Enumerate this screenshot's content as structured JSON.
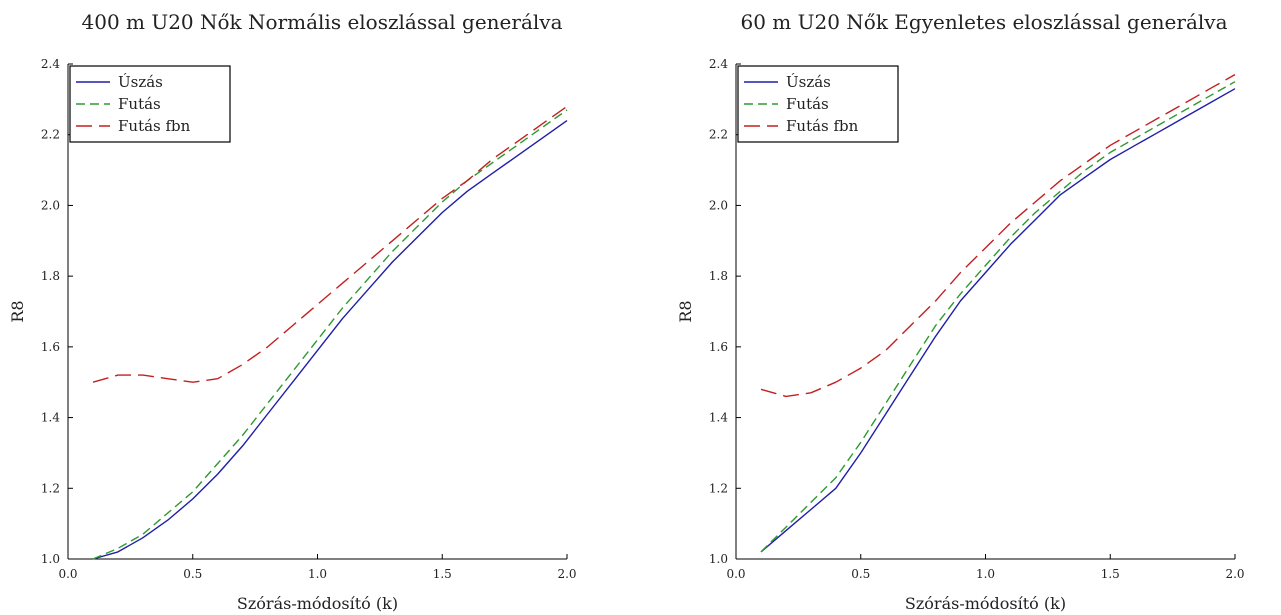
{
  "chart_data": [
    {
      "type": "line",
      "title": "400 m U20 Nők Normális eloszlással generálva",
      "xlabel": "Szórás-módosító (k)",
      "ylabel": "R8",
      "xlim": [
        0.0,
        2.0
      ],
      "ylim": [
        1.0,
        2.4
      ],
      "xticks": [
        "0.0",
        "0.5",
        "1.0",
        "1.5",
        "2.0"
      ],
      "yticks": [
        "1.0",
        "1.2",
        "1.4",
        "1.6",
        "1.8",
        "2.0",
        "2.2",
        "2.4"
      ],
      "grid": false,
      "legend_position": "top-left",
      "series": [
        {
          "name": "Úszás",
          "color": "#1f1fa8",
          "dash": "solid",
          "x": [
            0.1,
            0.2,
            0.3,
            0.4,
            0.5,
            0.6,
            0.7,
            0.8,
            0.9,
            1.0,
            1.1,
            1.2,
            1.3,
            1.4,
            1.5,
            1.6,
            1.7,
            1.8,
            1.9,
            2.0
          ],
          "y": [
            1.0,
            1.02,
            1.06,
            1.11,
            1.17,
            1.24,
            1.32,
            1.41,
            1.5,
            1.59,
            1.68,
            1.76,
            1.84,
            1.91,
            1.98,
            2.04,
            2.09,
            2.14,
            2.19,
            2.24
          ]
        },
        {
          "name": "Futás",
          "color": "#2e9a2e",
          "dash": "dashed",
          "x": [
            0.1,
            0.2,
            0.3,
            0.4,
            0.5,
            0.6,
            0.7,
            0.8,
            0.9,
            1.0,
            1.1,
            1.2,
            1.3,
            1.4,
            1.5,
            1.6,
            1.7,
            1.8,
            1.9,
            2.0
          ],
          "y": [
            1.0,
            1.03,
            1.07,
            1.13,
            1.19,
            1.27,
            1.35,
            1.44,
            1.53,
            1.62,
            1.71,
            1.79,
            1.87,
            1.94,
            2.01,
            2.07,
            2.12,
            2.17,
            2.22,
            2.27
          ]
        },
        {
          "name": "Futás fbn",
          "color": "#c42020",
          "dash": "longdash",
          "x": [
            0.1,
            0.2,
            0.3,
            0.4,
            0.5,
            0.6,
            0.7,
            0.8,
            0.9,
            1.0,
            1.1,
            1.2,
            1.3,
            1.4,
            1.5,
            1.6,
            1.7,
            1.8,
            1.9,
            2.0
          ],
          "y": [
            1.5,
            1.52,
            1.52,
            1.51,
            1.5,
            1.51,
            1.55,
            1.6,
            1.66,
            1.72,
            1.78,
            1.84,
            1.9,
            1.96,
            2.02,
            2.07,
            2.13,
            2.18,
            2.23,
            2.28
          ]
        }
      ]
    },
    {
      "type": "line",
      "title": "60 m U20 Nők Egyenletes eloszlással generálva",
      "xlabel": "Szórás-módosító (k)",
      "ylabel": "R8",
      "xlim": [
        0.0,
        2.0
      ],
      "ylim": [
        1.0,
        2.4
      ],
      "xticks": [
        "0.0",
        "0.5",
        "1.0",
        "1.5",
        "2.0"
      ],
      "yticks": [
        "1.0",
        "1.2",
        "1.4",
        "1.6",
        "1.8",
        "2.0",
        "2.2",
        "2.4"
      ],
      "grid": false,
      "legend_position": "top-left",
      "series": [
        {
          "name": "Úszás",
          "color": "#1f1fa8",
          "dash": "solid",
          "x": [
            0.1,
            0.2,
            0.3,
            0.4,
            0.5,
            0.6,
            0.7,
            0.8,
            0.9,
            1.0,
            1.1,
            1.2,
            1.3,
            1.4,
            1.5,
            1.6,
            1.7,
            1.8,
            1.9,
            2.0
          ],
          "y": [
            1.02,
            1.08,
            1.14,
            1.2,
            1.3,
            1.41,
            1.52,
            1.63,
            1.73,
            1.81,
            1.89,
            1.96,
            2.03,
            2.08,
            2.13,
            2.17,
            2.21,
            2.25,
            2.29,
            2.33
          ]
        },
        {
          "name": "Futás",
          "color": "#2e9a2e",
          "dash": "dashed",
          "x": [
            0.1,
            0.2,
            0.3,
            0.4,
            0.5,
            0.6,
            0.7,
            0.8,
            0.9,
            1.0,
            1.1,
            1.2,
            1.3,
            1.4,
            1.5,
            1.6,
            1.7,
            1.8,
            1.9,
            2.0
          ],
          "y": [
            1.02,
            1.09,
            1.16,
            1.23,
            1.33,
            1.44,
            1.55,
            1.66,
            1.75,
            1.83,
            1.91,
            1.98,
            2.04,
            2.1,
            2.15,
            2.19,
            2.23,
            2.27,
            2.31,
            2.35
          ]
        },
        {
          "name": "Futás fbn",
          "color": "#c42020",
          "dash": "longdash",
          "x": [
            0.1,
            0.2,
            0.3,
            0.4,
            0.5,
            0.6,
            0.7,
            0.8,
            0.9,
            1.0,
            1.1,
            1.2,
            1.3,
            1.4,
            1.5,
            1.6,
            1.7,
            1.8,
            1.9,
            2.0
          ],
          "y": [
            1.48,
            1.46,
            1.47,
            1.5,
            1.54,
            1.59,
            1.66,
            1.73,
            1.81,
            1.88,
            1.95,
            2.01,
            2.07,
            2.12,
            2.17,
            2.21,
            2.25,
            2.29,
            2.33,
            2.37
          ]
        }
      ]
    }
  ]
}
